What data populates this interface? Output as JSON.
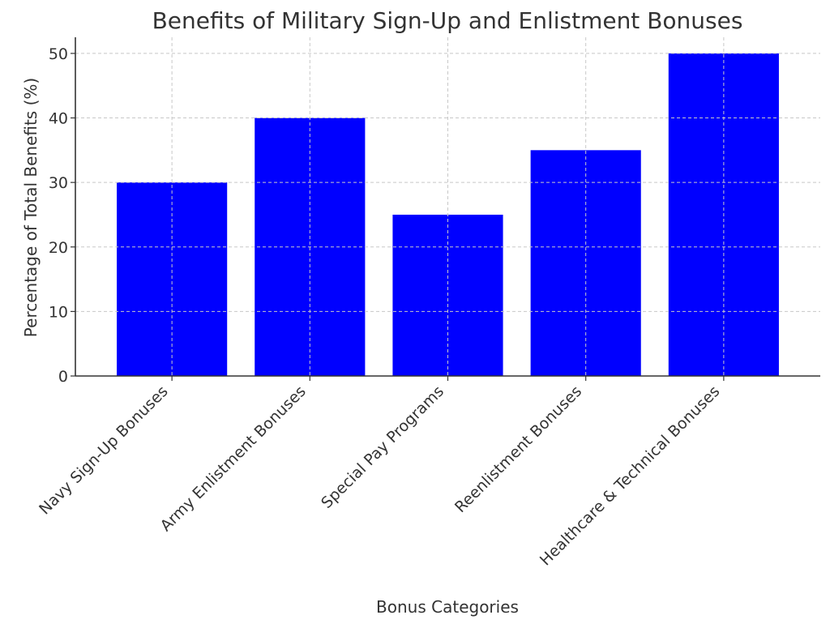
{
  "chart_data": {
    "type": "bar",
    "title": "Benefits of Military Sign-Up and Enlistment Bonuses",
    "xlabel": "Bonus Categories",
    "ylabel": "Percentage of Total Benefits (%)",
    "categories": [
      "Navy Sign-Up Bonuses",
      "Army Enlistment Bonuses",
      "Special Pay Programs",
      "Reenlistment Bonuses",
      "Healthcare & Technical Bonuses"
    ],
    "values": [
      30,
      40,
      25,
      35,
      50
    ],
    "ylim": [
      0,
      52.5
    ],
    "yticks": [
      0,
      10,
      20,
      30,
      40,
      50
    ],
    "bar_color": "#0000ff",
    "grid": true
  }
}
